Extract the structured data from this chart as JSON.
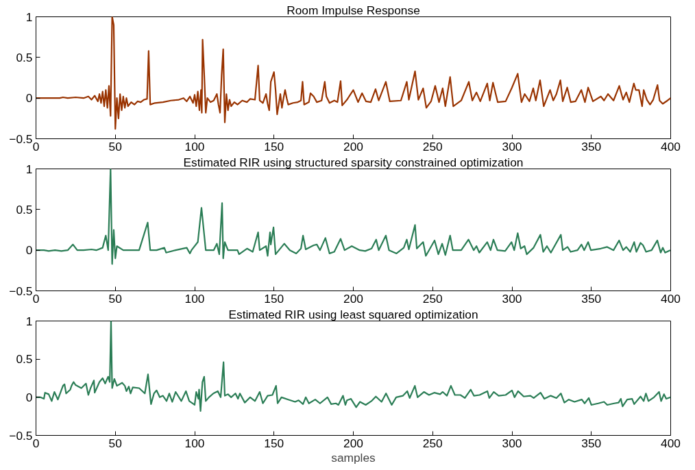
{
  "chart_data": [
    {
      "type": "line",
      "title": "Room Impulse Response",
      "xlim": [
        0,
        400
      ],
      "xticks": [
        0,
        50,
        100,
        150,
        200,
        250,
        300,
        350,
        400
      ],
      "ylim": [
        -0.5,
        1
      ],
      "yticks": [
        -0.5,
        0,
        0.5,
        1
      ],
      "line_style": "solid",
      "marker": "none",
      "series": [
        {
          "color": "#993300",
          "x": [
            0,
            15,
            17,
            20,
            25,
            30,
            33,
            35,
            37,
            39,
            40,
            41,
            42,
            43,
            44,
            45,
            46,
            47,
            48,
            49,
            50,
            51,
            52,
            53,
            54,
            55,
            56,
            57,
            58,
            60,
            62,
            64,
            66,
            68,
            70,
            71,
            72,
            75,
            80,
            85,
            90,
            93,
            95,
            97,
            99,
            100,
            101,
            102,
            103,
            104,
            104.5,
            105,
            106,
            107,
            108,
            110,
            112,
            114,
            115,
            116,
            117,
            118,
            119,
            120,
            121,
            122,
            123,
            125,
            127,
            130,
            133,
            135,
            138,
            140,
            141,
            143,
            145,
            146,
            147,
            148,
            150,
            151,
            152,
            154,
            155,
            156,
            157,
            158,
            159,
            162,
            165,
            167,
            168,
            169,
            172,
            173,
            175,
            177,
            180,
            182,
            183,
            185,
            188,
            190,
            192,
            193,
            196,
            200,
            203,
            205.5,
            208,
            211,
            214,
            216,
            220.5,
            223,
            230,
            233.7,
            235,
            238.9,
            241,
            244,
            246,
            249,
            251.6,
            254,
            256.3,
            258,
            261,
            263,
            268,
            272.8,
            275,
            277.6,
            280,
            284.4,
            286,
            288,
            291,
            296,
            300,
            303.6,
            306,
            308,
            311,
            313.4,
            315,
            317.7,
            320,
            324,
            326,
            328,
            330.5,
            332,
            334.8,
            337,
            340,
            343.7,
            346,
            348,
            351,
            356,
            358,
            360.5,
            364,
            367.6,
            370,
            372,
            374,
            376.8,
            378,
            380,
            382,
            383,
            385,
            387,
            389,
            391.7,
            393,
            395,
            398,
            400
          ],
          "values": [
            0,
            0,
            0.01,
            0,
            0.01,
            0,
            0.02,
            -0.02,
            0.03,
            -0.04,
            0.05,
            -0.06,
            0.08,
            -0.1,
            0.1,
            -0.12,
            0.15,
            -0.22,
            1,
            0.9,
            -0.38,
            0,
            -0.25,
            0.05,
            -0.15,
            0.02,
            -0.12,
            0,
            -0.1,
            -0.05,
            -0.08,
            -0.04,
            -0.05,
            -0.02,
            -0.01,
            0.58,
            -0.08,
            -0.06,
            -0.05,
            -0.03,
            -0.02,
            0,
            -0.04,
            0.02,
            -0.06,
            0.04,
            -0.1,
            0.08,
            -0.15,
            0.1,
            -0.18,
            0.72,
            0.3,
            -0.18,
            0,
            -0.05,
            -0.03,
            0.05,
            -0.08,
            -0.18,
            0.28,
            0.6,
            -0.3,
            0.05,
            -0.15,
            -0.02,
            -0.1,
            -0.05,
            -0.08,
            -0.03,
            -0.05,
            -0.01,
            -0.02,
            0.4,
            -0.03,
            -0.06,
            0.05,
            -0.07,
            -0.15,
            0.2,
            0.32,
            0.1,
            -0.2,
            0.05,
            -0.12,
            0,
            0.1,
            0,
            -0.08,
            -0.06,
            -0.05,
            -0.03,
            0.2,
            -0.08,
            -0.05,
            0.06,
            0.02,
            -0.05,
            -0.03,
            0.2,
            0.02,
            -0.06,
            -0.03,
            -0.05,
            0.21,
            -0.09,
            -0.02,
            0.1,
            -0.05,
            0.06,
            -0.04,
            -0.05,
            0.11,
            -0.03,
            0.2,
            -0.04,
            -0.03,
            0.2,
            -0.02,
            0.33,
            -0.02,
            0.12,
            -0.12,
            -0.04,
            0.15,
            -0.05,
            0.12,
            -0.1,
            0.26,
            -0.1,
            -0.03,
            0.2,
            -0.03,
            0.07,
            -0.04,
            0.18,
            -0.03,
            0.19,
            -0.05,
            -0.04,
            0.13,
            0.3,
            -0.05,
            0.05,
            -0.04,
            0.12,
            -0.03,
            0.22,
            -0.1,
            0.1,
            -0.03,
            0.05,
            0.22,
            -0.04,
            0.13,
            -0.05,
            -0.04,
            0.1,
            -0.05,
            0.13,
            -0.04,
            0.02,
            -0.03,
            0.05,
            -0.03,
            0.15,
            -0.02,
            0.07,
            -0.05,
            0.18,
            0.1,
            0.1,
            -0.1,
            0.1,
            -0.02,
            -0.08,
            -0.02,
            0.16,
            -0.03,
            -0.07,
            -0.03,
            0
          ]
        }
      ]
    },
    {
      "type": "line",
      "title": "Estimated RIR using structured sparsity constrained optimization",
      "xlim": [
        0,
        400
      ],
      "xticks": [
        0,
        50,
        100,
        150,
        200,
        250,
        300,
        350,
        400
      ],
      "ylim": [
        -0.5,
        1
      ],
      "yticks": [
        -0.5,
        0,
        0.5,
        1
      ],
      "line_style": "solid",
      "marker": "none",
      "series": [
        {
          "color": "#2a7d55",
          "x": [
            0,
            5,
            8,
            12,
            16,
            20,
            23.3,
            26,
            30,
            35,
            38,
            42,
            44,
            45.5,
            47,
            48,
            49,
            50,
            51,
            55,
            60,
            65,
            70.4,
            72,
            76,
            80.9,
            82,
            88,
            95,
            97,
            98,
            102,
            104.3,
            107,
            112,
            114,
            115.5,
            117.3,
            118,
            119,
            121,
            127,
            128,
            133,
            136.6,
            140,
            141,
            145,
            146,
            147.5,
            148,
            149.7,
            151,
            156.5,
            160,
            164,
            167,
            168.3,
            170,
            175,
            177,
            179,
            182.4,
            185,
            188,
            192,
            194.5,
            199,
            204,
            207.5,
            211.5,
            214.4,
            216,
            220.5,
            222.5,
            227.2,
            231.8,
            233.7,
            235,
            238.9,
            240,
            244,
            245.7,
            251.2,
            253.6,
            256,
            258,
            261,
            262.7,
            268,
            272.6,
            275.9,
            277.6,
            279.4,
            284.4,
            286.5,
            288.3,
            290.8,
            295.7,
            299.7,
            301.4,
            303.6,
            305.5,
            307.9,
            309.3,
            313.6,
            317.9,
            319.7,
            322,
            324.5,
            330.8,
            332,
            335,
            337,
            341.3,
            343.8,
            345.5,
            348,
            349.7,
            356,
            360,
            364,
            367.5,
            370,
            372,
            374.5,
            377,
            378.4,
            381,
            382.6,
            384.5,
            388,
            391.6,
            393.7,
            395,
            396.5,
            399.7
          ],
          "values": [
            0,
            0,
            -0.01,
            0,
            -0.01,
            0,
            0.07,
            0,
            0,
            0.01,
            0,
            0.03,
            0.18,
            0,
            1,
            -0.17,
            0.25,
            -0.1,
            0.05,
            0,
            0,
            0,
            0.34,
            0,
            0,
            0.03,
            -0.03,
            0,
            0.03,
            -0.04,
            0,
            0.1,
            0.52,
            0,
            0,
            0.08,
            -0.05,
            0.58,
            -0.1,
            0.1,
            0,
            0,
            -0.05,
            0.02,
            -0.02,
            0.22,
            0,
            0.05,
            -0.07,
            0.22,
            0.07,
            0.28,
            -0.05,
            0.08,
            0,
            -0.04,
            0.02,
            0.18,
            0.01,
            0.06,
            0.07,
            0,
            0.15,
            -0.04,
            -0.02,
            0.14,
            0,
            0.05,
            0,
            -0.01,
            0.02,
            0.13,
            0,
            0.18,
            0,
            -0.04,
            0.03,
            0.13,
            0.01,
            0.31,
            0.02,
            0.1,
            -0.07,
            0.12,
            -0.05,
            0.08,
            -0.06,
            0.18,
            0,
            0,
            0.13,
            0,
            0.05,
            -0.03,
            0.1,
            0,
            0.13,
            0,
            -0.01,
            0.1,
            0,
            0.21,
            0.02,
            0.05,
            -0.05,
            0.03,
            0.19,
            -0.02,
            0.05,
            -0.03,
            0.19,
            0,
            0.04,
            -0.02,
            0,
            0.07,
            0,
            0.1,
            0,
            0.02,
            0.04,
            0,
            0.12,
            0,
            0.04,
            -0.02,
            0.1,
            -0.02,
            0.09,
            0.06,
            -0.02,
            0,
            0.12,
            -0.03,
            0.03,
            -0.03,
            0
          ]
        }
      ]
    },
    {
      "type": "line",
      "title": "Estimated RIR using least squared optimization",
      "xlabel": "samples",
      "xlim": [
        0,
        400
      ],
      "xticks": [
        0,
        50,
        100,
        150,
        200,
        250,
        300,
        350,
        400
      ],
      "ylim": [
        -0.5,
        1
      ],
      "yticks": [
        -0.5,
        0,
        0.5,
        1
      ],
      "line_style": "solid",
      "marker": "none",
      "series": [
        {
          "color": "#2a7d55",
          "x": [
            0,
            2.8,
            5,
            5.7,
            8,
            9.9,
            11.6,
            13.8,
            17,
            18,
            19,
            21.6,
            22.4,
            23.7,
            25,
            28.6,
            31.5,
            33,
            34.4,
            36.5,
            37,
            40,
            42,
            43.6,
            45.5,
            46.5,
            47.3,
            48,
            49.4,
            51,
            54.3,
            56,
            57,
            58.5,
            59.6,
            61,
            65,
            68.6,
            70.6,
            72.5,
            74.4,
            76,
            78,
            80,
            82.3,
            84,
            85.9,
            88,
            91.6,
            94.5,
            96.6,
            100,
            101,
            102.4,
            102.8,
            103.7,
            104.9,
            106,
            107,
            109,
            111.8,
            114.6,
            116.4,
            118.2,
            119,
            121,
            123,
            125.7,
            127.3,
            128.5,
            131.6,
            135,
            138,
            141,
            143,
            146,
            149,
            151.3,
            152.3,
            154.7,
            159,
            163.3,
            165.5,
            168.3,
            170,
            172,
            176,
            179,
            183.7,
            186,
            189,
            190.6,
            193.5,
            195,
            196,
            198.5,
            201.8,
            204.2,
            207.8,
            211.4,
            214.2,
            217.8,
            220.6,
            224.2,
            227,
            231.3,
            234,
            235.5,
            238.8,
            240.5,
            244.5,
            247.7,
            251,
            254.7,
            256.3,
            259,
            261.5,
            264,
            267.5,
            270.3,
            274,
            276,
            279.6,
            284.5,
            285.7,
            288.5,
            291.6,
            296,
            300,
            301.6,
            303.8,
            307.4,
            311.6,
            313.7,
            318,
            320.4,
            324.4,
            328,
            330.8,
            333,
            335.8,
            339.4,
            344,
            345.8,
            348.4,
            350,
            354.4,
            358,
            360,
            364.4,
            367.2,
            368.6,
            369.7,
            372.6,
            375.7,
            377,
            381,
            383,
            384.4,
            386,
            389.5,
            392.7,
            394,
            395.8,
            397.2,
            400
          ],
          "values": [
            0,
            0,
            -0.02,
            0.06,
            0.04,
            -0.05,
            0.07,
            -0.03,
            0.15,
            0.17,
            0.05,
            0.1,
            0.15,
            0.2,
            0.16,
            0.12,
            0.18,
            0.03,
            0.12,
            0.22,
            0.06,
            0.2,
            0.25,
            0.18,
            0.27,
            0.2,
            1,
            0.12,
            0.24,
            0.15,
            0.19,
            0.15,
            0.08,
            0.14,
            0.05,
            0.13,
            0.12,
            0.05,
            0.3,
            -0.09,
            0.05,
            0.09,
            0,
            0.02,
            -0.05,
            0.05,
            -0.06,
            0.07,
            -0.05,
            0.08,
            -0.05,
            -0.1,
            0.07,
            -0.02,
            0.1,
            -0.18,
            0.2,
            0.27,
            -0.05,
            0,
            0.05,
            0.08,
            0,
            0.46,
            0.02,
            0.04,
            0,
            0.05,
            -0.02,
            0.05,
            -0.07,
            0,
            -0.05,
            0.07,
            -0.08,
            0.02,
            0.03,
            0.15,
            -0.08,
            0,
            -0.03,
            -0.06,
            -0.04,
            -0.09,
            0,
            -0.08,
            -0.03,
            -0.08,
            0,
            -0.09,
            -0.08,
            -0.1,
            0.02,
            -0.1,
            -0.04,
            -0.02,
            -0.13,
            -0.06,
            -0.1,
            -0.05,
            0.01,
            -0.06,
            0.05,
            -0.1,
            0,
            0.02,
            0.08,
            -0.01,
            0.15,
            0,
            0.07,
            0.03,
            0.06,
            0.04,
            0.07,
            0.02,
            0.15,
            0.03,
            0.03,
            -0.01,
            0.1,
            0.02,
            0.03,
            0.08,
            -0.01,
            0.07,
            0.02,
            0.03,
            0.09,
            0,
            0.08,
            0.01,
            0.02,
            -0.01,
            0.06,
            -0.02,
            0.02,
            -0.01,
            0.05,
            -0.07,
            -0.03,
            -0.06,
            -0.03,
            -0.08,
            -0.01,
            -0.1,
            -0.08,
            -0.06,
            -0.1,
            -0.08,
            -0.07,
            -0.02,
            -0.12,
            -0.03,
            -0.02,
            -0.09,
            0.01,
            -0.05,
            0.05,
            -0.05,
            0,
            0.07,
            -0.05,
            0.04,
            -0.02,
            0
          ]
        }
      ]
    }
  ]
}
